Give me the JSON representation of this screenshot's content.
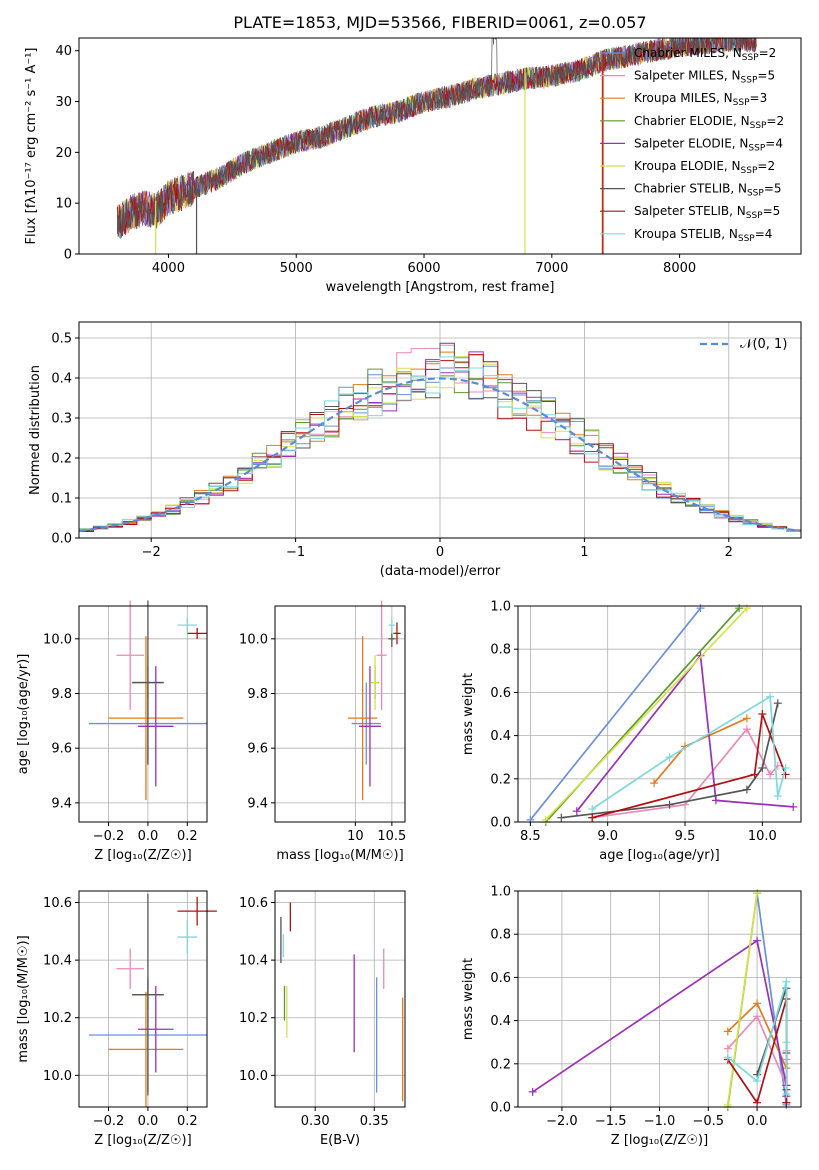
{
  "figure_title": "PLATE=1853, MJD=53566, FIBERID=0061, z=0.057",
  "legend_colors": {
    "Chabrier MILES": "#6a8fdc",
    "Salpeter MILES": "#e88ab8",
    "Kroupa MILES": "#e07b1f",
    "Chabrier ELODIE": "#5a9a2a",
    "Salpeter ELODIE": "#9b30b8",
    "Kroupa ELODIE": "#d4e24a",
    "Chabrier STELIB": "#555555",
    "Salpeter STELIB": "#b01010",
    "Kroupa STELIB": "#7dd8dc"
  },
  "chart_data": [
    {
      "type": "line",
      "xlabel": "wavelength [Angstrom, rest frame]",
      "ylabel": "Flux [fλ10⁻¹⁷ erg cm⁻² s⁻¹ A⁻¹]",
      "xlim": [
        3300,
        8950
      ],
      "ylim": [
        0,
        42.5
      ],
      "xticks": [
        4000,
        5000,
        6000,
        7000,
        8000
      ],
      "yticks": [
        0,
        10,
        20,
        30,
        40
      ],
      "grid": false,
      "legend_position": "top-right",
      "legend": [
        {
          "label": "Chabrier MILES, N",
          "sub": "SSP",
          "tail": "=2"
        },
        {
          "label": "Salpeter MILES, N",
          "sub": "SSP",
          "tail": "=5"
        },
        {
          "label": "Kroupa MILES, N",
          "sub": "SSP",
          "tail": "=3"
        },
        {
          "label": "Chabrier ELODIE, N",
          "sub": "SSP",
          "tail": "=2"
        },
        {
          "label": "Salpeter ELODIE, N",
          "sub": "SSP",
          "tail": "=4"
        },
        {
          "label": "Kroupa ELODIE, N",
          "sub": "SSP",
          "tail": "=2"
        },
        {
          "label": "Chabrier STELIB, N",
          "sub": "SSP",
          "tail": "=5"
        },
        {
          "label": "Salpeter STELIB, N",
          "sub": "SSP",
          "tail": "=5"
        },
        {
          "label": "Kroupa STELIB, N",
          "sub": "SSP",
          "tail": "=4"
        }
      ],
      "spectrum_envelope": {
        "x": [
          3600,
          3700,
          3800,
          3900,
          4000,
          4200,
          4400,
          4600,
          4800,
          5000,
          5200,
          5400,
          5600,
          5800,
          6000,
          6200,
          6400,
          6600,
          6800,
          7000,
          7200,
          7400,
          7600,
          7800,
          8000,
          8200,
          8400,
          8600
        ],
        "y": [
          6,
          8,
          9,
          8.5,
          11,
          13,
          15,
          18,
          20,
          22,
          23,
          25,
          27,
          28,
          30,
          31,
          32.5,
          33.5,
          34.5,
          35,
          36,
          38,
          39,
          40,
          41,
          41.5,
          42,
          42
        ]
      }
    },
    {
      "type": "bar",
      "xlabel": "(data-model)/error",
      "ylabel": "Normed distribution",
      "xlim": [
        -2.5,
        2.5
      ],
      "ylim": [
        0,
        0.54
      ],
      "xticks": [
        -2,
        -1,
        0,
        1,
        2
      ],
      "yticks": [
        0.0,
        0.1,
        0.2,
        0.3,
        0.4,
        0.5
      ],
      "grid": true,
      "legend_position": "top-right",
      "reference_label": "𝒩(0, 1)",
      "bin_width": 0.1
    },
    {
      "type": "scatter",
      "xlabel": "Z [log₁₀(Z/Z☉)]",
      "ylabel": "age [log₁₀(age/yr)]",
      "xlim": [
        -0.35,
        0.3
      ],
      "ylim": [
        9.33,
        10.12
      ],
      "xticks": [
        "−0.2",
        "0.0",
        "0.2"
      ],
      "yticks": [
        "9.4",
        "9.6",
        "9.8",
        "10.0"
      ],
      "grid": true,
      "points": [
        {
          "model": "Chabrier MILES",
          "x": 0.0,
          "y": 9.69,
          "xerr": 0.3,
          "yerr": 0.15
        },
        {
          "model": "Salpeter MILES",
          "x": -0.09,
          "y": 9.94,
          "xerr": 0.07,
          "yerr": 0.2
        },
        {
          "model": "Kroupa MILES",
          "x": -0.01,
          "y": 9.71,
          "xerr": 0.19,
          "yerr": 0.3
        },
        {
          "model": "Chabrier ELODIE",
          "x": 0.0,
          "y": 9.84,
          "xerr": 0.08,
          "yerr": 0.06
        },
        {
          "model": "Salpeter ELODIE",
          "x": 0.04,
          "y": 9.68,
          "xerr": 0.09,
          "yerr": 0.22
        },
        {
          "model": "Kroupa ELODIE",
          "x": 0.0,
          "y": 9.84,
          "xerr": 0.05,
          "yerr": 0.1
        },
        {
          "model": "Chabrier STELIB",
          "x": 0.0,
          "y": 9.84,
          "xerr": 0.08,
          "yerr": 0.3
        },
        {
          "model": "Salpeter STELIB",
          "x": 0.25,
          "y": 10.02,
          "xerr": 0.05,
          "yerr": 0.02
        },
        {
          "model": "Kroupa STELIB",
          "x": 0.2,
          "y": 10.05,
          "xerr": 0.05,
          "yerr": 0.03
        }
      ]
    },
    {
      "type": "scatter",
      "xlabel": "mass [log₁₀(M/M☉)]",
      "ylabel": "",
      "xlim": [
        8.9,
        10.68
      ],
      "ylim": [
        9.33,
        10.12
      ],
      "xticks": [
        "10",
        "10.5"
      ],
      "yticks": [
        "9.4",
        "9.6",
        "9.8",
        "10.0"
      ],
      "grid": true,
      "points": [
        {
          "model": "Chabrier MILES",
          "x": 10.15,
          "y": 9.69,
          "xerr": 0.2,
          "yerr": 0.15
        },
        {
          "model": "Salpeter MILES",
          "x": 10.36,
          "y": 9.94,
          "xerr": 0.07,
          "yerr": 0.2
        },
        {
          "model": "Kroupa MILES",
          "x": 10.1,
          "y": 9.71,
          "xerr": 0.2,
          "yerr": 0.3
        },
        {
          "model": "Chabrier ELODIE",
          "x": 10.27,
          "y": 9.84,
          "xerr": 0.05,
          "yerr": 0.06
        },
        {
          "model": "Salpeter ELODIE",
          "x": 10.2,
          "y": 9.68,
          "xerr": 0.15,
          "yerr": 0.22
        },
        {
          "model": "Kroupa ELODIE",
          "x": 10.27,
          "y": 9.84,
          "xerr": 0.04,
          "yerr": 0.1
        },
        {
          "model": "Chabrier STELIB",
          "x": 10.5,
          "y": 10.0,
          "xerr": 0.05,
          "yerr": 0.03
        },
        {
          "model": "Salpeter STELIB",
          "x": 10.57,
          "y": 10.02,
          "xerr": 0.05,
          "yerr": 0.04
        },
        {
          "model": "Kroupa STELIB",
          "x": 10.5,
          "y": 10.05,
          "xerr": 0.04,
          "yerr": 0.03
        }
      ]
    },
    {
      "type": "line",
      "xlabel": "age [log₁₀(age/yr)]",
      "ylabel": "mass weight",
      "xlim": [
        8.42,
        10.25
      ],
      "ylim": [
        0,
        1
      ],
      "xticks": [
        "8.5",
        "9.0",
        "9.5",
        "10.0"
      ],
      "yticks": [
        "0.0",
        "0.2",
        "0.4",
        "0.6",
        "0.8",
        "1.0"
      ],
      "grid": true,
      "series": [
        {
          "model": "Chabrier MILES",
          "x": [
            8.5,
            9.6
          ],
          "y": [
            0.01,
            0.99
          ]
        },
        {
          "model": "Salpeter MILES",
          "x": [
            8.9,
            9.5,
            9.9,
            10.05,
            10.1
          ],
          "y": [
            0.02,
            0.08,
            0.43,
            0.22,
            0.26
          ]
        },
        {
          "model": "Kroupa MILES",
          "x": [
            9.3,
            9.5,
            9.9
          ],
          "y": [
            0.18,
            0.35,
            0.48
          ]
        },
        {
          "model": "Chabrier ELODIE",
          "x": [
            8.6,
            9.85
          ],
          "y": [
            0.0,
            0.99
          ]
        },
        {
          "model": "Salpeter ELODIE",
          "x": [
            8.8,
            9.6,
            9.7,
            10.2
          ],
          "y": [
            0.05,
            0.77,
            0.1,
            0.07
          ]
        },
        {
          "model": "Kroupa ELODIE",
          "x": [
            8.6,
            9.9
          ],
          "y": [
            0.01,
            0.99
          ]
        },
        {
          "model": "Chabrier STELIB",
          "x": [
            8.7,
            9.4,
            9.9,
            10.0,
            10.1
          ],
          "y": [
            0.02,
            0.08,
            0.15,
            0.25,
            0.55
          ]
        },
        {
          "model": "Salpeter STELIB",
          "x": [
            8.9,
            9.95,
            10.0,
            10.15
          ],
          "y": [
            0.02,
            0.22,
            0.5,
            0.22
          ]
        },
        {
          "model": "Kroupa STELIB",
          "x": [
            8.9,
            9.4,
            10.05,
            10.1,
            10.15
          ],
          "y": [
            0.06,
            0.3,
            0.58,
            0.12,
            0.25
          ]
        }
      ]
    },
    {
      "type": "scatter",
      "xlabel": "Z [log₁₀(Z/Z☉)]",
      "ylabel": "mass [log₁₀(M/M☉)]",
      "xlim": [
        -0.35,
        0.3
      ],
      "ylim": [
        9.89,
        10.64
      ],
      "xticks": [
        "−0.2",
        "0.0",
        "0.2"
      ],
      "yticks": [
        "10.0",
        "10.2",
        "10.4",
        "10.6"
      ],
      "grid": true,
      "points": [
        {
          "model": "Chabrier MILES",
          "x": 0.0,
          "y": 10.14,
          "xerr": 0.3,
          "yerr": 0.2
        },
        {
          "model": "Salpeter MILES",
          "x": -0.09,
          "y": 10.37,
          "xerr": 0.07,
          "yerr": 0.07
        },
        {
          "model": "Kroupa MILES",
          "x": -0.01,
          "y": 10.09,
          "xerr": 0.19,
          "yerr": 0.2
        },
        {
          "model": "Chabrier ELODIE",
          "x": 0.0,
          "y": 10.28,
          "xerr": 0.08,
          "yerr": 0.05
        },
        {
          "model": "Salpeter ELODIE",
          "x": 0.04,
          "y": 10.16,
          "xerr": 0.09,
          "yerr": 0.15
        },
        {
          "model": "Kroupa ELODIE",
          "x": 0.0,
          "y": 10.28,
          "xerr": 0.05,
          "yerr": 0.04
        },
        {
          "model": "Chabrier STELIB",
          "x": 0.0,
          "y": 10.28,
          "xerr": 0.08,
          "yerr": 0.35
        },
        {
          "model": "Salpeter STELIB",
          "x": 0.25,
          "y": 10.57,
          "xerr": 0.1,
          "yerr": 0.05
        },
        {
          "model": "Kroupa STELIB",
          "x": 0.2,
          "y": 10.48,
          "xerr": 0.05,
          "yerr": 0.06
        }
      ]
    },
    {
      "type": "scatter",
      "xlabel": "E(B-V)",
      "ylabel": "",
      "xlim": [
        0.266,
        0.376
      ],
      "ylim": [
        9.89,
        10.64
      ],
      "xticks": [
        "0.30",
        "0.35"
      ],
      "yticks": [
        "10.0",
        "10.2",
        "10.4",
        "10.6"
      ],
      "grid": true,
      "points": [
        {
          "model": "Chabrier MILES",
          "x": 0.352,
          "y": 10.14,
          "yerr": 0.2
        },
        {
          "model": "Salpeter MILES",
          "x": 0.358,
          "y": 10.37,
          "yerr": 0.07
        },
        {
          "model": "Kroupa MILES",
          "x": 0.374,
          "y": 10.09,
          "yerr": 0.18
        },
        {
          "model": "Chabrier ELODIE",
          "x": 0.274,
          "y": 10.25,
          "yerr": 0.06
        },
        {
          "model": "Salpeter ELODIE",
          "x": 0.333,
          "y": 10.25,
          "yerr": 0.17
        },
        {
          "model": "Kroupa ELODIE",
          "x": 0.276,
          "y": 10.22,
          "yerr": 0.09
        },
        {
          "model": "Chabrier STELIB",
          "x": 0.271,
          "y": 10.47,
          "yerr": 0.08
        },
        {
          "model": "Salpeter STELIB",
          "x": 0.279,
          "y": 10.55,
          "yerr": 0.05
        },
        {
          "model": "Kroupa STELIB",
          "x": 0.273,
          "y": 10.45,
          "yerr": 0.04
        }
      ]
    },
    {
      "type": "line",
      "xlabel": "Z [log₁₀(Z/Z☉)]",
      "ylabel": "mass weight",
      "xlim": [
        -2.45,
        0.45
      ],
      "ylim": [
        0,
        1
      ],
      "xticks": [
        "−2.0",
        "−1.5",
        "−1.0",
        "−0.5",
        "0.0"
      ],
      "yticks": [
        "0.0",
        "0.2",
        "0.4",
        "0.6",
        "0.8",
        "1.0"
      ],
      "grid": true,
      "series": [
        {
          "model": "Chabrier MILES",
          "x": [
            0.0,
            0.3
          ],
          "y": [
            0.99,
            0.01
          ]
        },
        {
          "model": "Salpeter MILES",
          "x": [
            -0.3,
            0.0,
            0.3,
            0.3,
            0.3
          ],
          "y": [
            0.27,
            0.42,
            0.1,
            0.22,
            0.26
          ]
        },
        {
          "model": "Kroupa MILES",
          "x": [
            -0.3,
            0.0,
            0.3
          ],
          "y": [
            0.35,
            0.48,
            0.18
          ]
        },
        {
          "model": "Chabrier ELODIE",
          "x": [
            -0.3,
            0.0
          ],
          "y": [
            0.0,
            0.99
          ]
        },
        {
          "model": "Salpeter ELODIE",
          "x": [
            -2.3,
            0.0,
            0.3,
            0.3
          ],
          "y": [
            0.07,
            0.77,
            0.1,
            0.05
          ]
        },
        {
          "model": "Kroupa ELODIE",
          "x": [
            -0.3,
            0.0
          ],
          "y": [
            0.01,
            0.99
          ]
        },
        {
          "model": "Chabrier STELIB",
          "x": [
            0.0,
            0.3,
            0.3,
            0.3,
            0.3
          ],
          "y": [
            0.15,
            0.55,
            0.25,
            0.02,
            0.08
          ]
        },
        {
          "model": "Salpeter STELIB",
          "x": [
            -0.3,
            0.0,
            0.3,
            0.3
          ],
          "y": [
            0.22,
            0.02,
            0.5,
            0.02
          ]
        },
        {
          "model": "Kroupa STELIB",
          "x": [
            -0.3,
            0.0,
            0.3,
            0.3,
            0.3
          ],
          "y": [
            0.23,
            0.12,
            0.58,
            0.06,
            0.3
          ]
        }
      ]
    }
  ]
}
